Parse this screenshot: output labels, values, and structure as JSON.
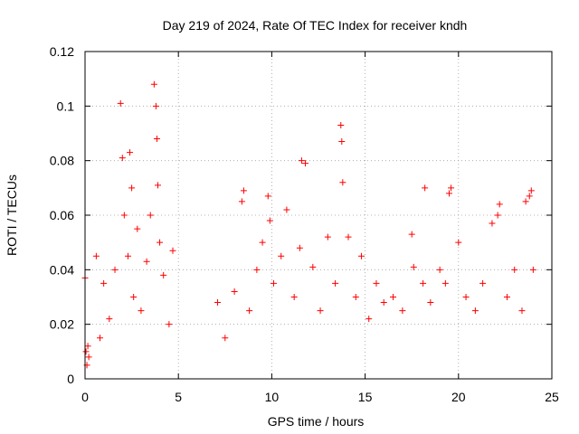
{
  "chart_data": {
    "type": "scatter",
    "title": "Day 219 of 2024, Rate Of TEC Index for receiver kndh",
    "xlabel": "GPS time / hours",
    "ylabel": "ROTI / TECUs",
    "xlim": [
      0,
      25
    ],
    "ylim": [
      0,
      0.12
    ],
    "xticks": [
      "0",
      "5",
      "10",
      "15",
      "20",
      "25"
    ],
    "yticks": [
      "0",
      "0.02",
      "0.04",
      "0.06",
      "0.08",
      "0.1",
      "0.12"
    ],
    "grid": true,
    "marker": "plus",
    "color": "#ff0000",
    "series": [
      {
        "x": [
          0.0,
          0.05,
          0.1,
          0.15,
          0.2,
          0.6,
          0.8,
          1.0,
          1.3,
          1.6,
          1.9,
          2.0,
          2.1,
          2.3,
          2.4,
          2.5,
          2.6,
          2.8,
          3.0,
          3.3,
          3.5,
          3.7,
          3.8,
          3.85,
          3.9,
          4.0,
          4.2,
          4.5,
          4.7,
          7.1,
          7.5,
          8.0,
          8.4,
          8.5,
          8.8,
          9.2,
          9.5,
          9.8,
          9.9,
          10.1,
          10.5,
          10.8,
          11.2,
          11.5,
          11.6,
          11.8,
          12.2,
          12.6,
          13.0,
          13.4,
          13.7,
          13.75,
          13.8,
          14.1,
          14.5,
          14.8,
          15.2,
          15.6,
          16.0,
          16.5,
          17.0,
          17.5,
          17.6,
          18.1,
          18.2,
          18.5,
          19.0,
          19.3,
          19.5,
          19.6,
          20.0,
          20.4,
          20.9,
          21.3,
          21.8,
          22.1,
          22.2,
          22.6,
          23.0,
          23.4,
          23.6,
          23.8,
          23.9,
          24.0
        ],
        "y": [
          0.037,
          0.01,
          0.005,
          0.012,
          0.008,
          0.045,
          0.015,
          0.035,
          0.022,
          0.04,
          0.101,
          0.081,
          0.06,
          0.045,
          0.083,
          0.07,
          0.03,
          0.055,
          0.025,
          0.043,
          0.06,
          0.108,
          0.1,
          0.088,
          0.071,
          0.05,
          0.038,
          0.02,
          0.047,
          0.028,
          0.015,
          0.032,
          0.065,
          0.069,
          0.025,
          0.04,
          0.05,
          0.067,
          0.058,
          0.035,
          0.045,
          0.062,
          0.03,
          0.048,
          0.08,
          0.079,
          0.041,
          0.025,
          0.052,
          0.035,
          0.093,
          0.087,
          0.072,
          0.052,
          0.03,
          0.045,
          0.022,
          0.035,
          0.028,
          0.03,
          0.025,
          0.053,
          0.041,
          0.035,
          0.07,
          0.028,
          0.04,
          0.035,
          0.068,
          0.07,
          0.05,
          0.03,
          0.025,
          0.035,
          0.057,
          0.06,
          0.064,
          0.03,
          0.04,
          0.025,
          0.065,
          0.067,
          0.069,
          0.04
        ]
      }
    ]
  }
}
